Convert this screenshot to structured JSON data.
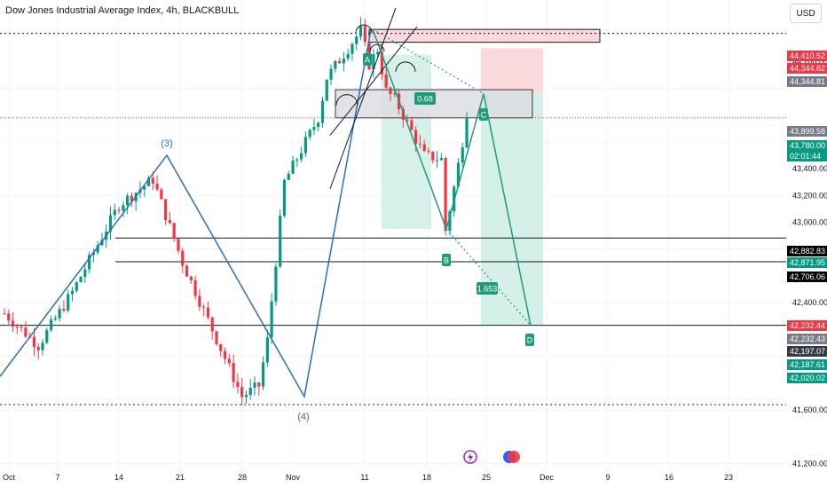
{
  "header": {
    "title": "Dow Jones Industrial Average Index, 4h, BLACKBULL",
    "currency": "USD"
  },
  "colors": {
    "up": "#089981",
    "down": "#f23645",
    "wave": "#2e6fb5",
    "pattern": "#1f9a7a",
    "target_zone": "#d3efe8",
    "stop_zone": "#fbd8dc"
  },
  "chart_data": {
    "type": "candlestick",
    "instrument": "Dow Jones Industrial Average Index",
    "timeframe": "4h",
    "source": "BLACKBULL",
    "ylim": [
      41150,
      44560
    ],
    "y_ticks": [
      "41,200.00",
      "41,600.00",
      "42,400.00",
      "43,000.00",
      "43,200.00",
      "43,400.00",
      "44,200.00"
    ],
    "x_ticks": [
      "Oct",
      "7",
      "14",
      "21",
      "28",
      "Nov",
      "11",
      "18",
      "25",
      "Dec",
      "9",
      "16",
      "23"
    ],
    "price_labels": [
      {
        "value": "44,410.52",
        "bg": "#f23645"
      },
      {
        "value": "44,344.82",
        "bg": "#f23645"
      },
      {
        "value": "44,344.81",
        "bg": "#787b86"
      },
      {
        "value": "43,899.58",
        "bg": "#787b86"
      },
      {
        "value": "43,780.00",
        "bg": "#089981"
      },
      {
        "value": "02:01:44",
        "bg": "#089981"
      },
      {
        "value": "42,882.83",
        "bg": "#000000"
      },
      {
        "value": "42,871.95",
        "bg": "#089981"
      },
      {
        "value": "42,706.06",
        "bg": "#000000"
      },
      {
        "value": "42,232.44",
        "bg": "#f23645"
      },
      {
        "value": "42,232.43",
        "bg": "#787b86"
      },
      {
        "value": "42,197.07",
        "bg": "#363a45"
      },
      {
        "value": "42,187.61",
        "bg": "#089981"
      },
      {
        "value": "42,020.02",
        "bg": "#089981"
      }
    ],
    "horizontal_levels": [
      44410,
      42883,
      42706,
      42232,
      41640
    ],
    "current_price": 43780,
    "wave_labels": [
      "(3)",
      "(4)"
    ],
    "pattern_points": [
      {
        "label": "A",
        "date_idx": 62,
        "price": 44440
      },
      {
        "label": "B",
        "date_idx": 73,
        "price": 42950
      },
      {
        "label": "C",
        "date_idx": 80,
        "price": 43960
      },
      {
        "label": "D",
        "date_idx": 87,
        "price": 42230
      }
    ],
    "ratios": [
      "0.68",
      "1.653"
    ]
  }
}
